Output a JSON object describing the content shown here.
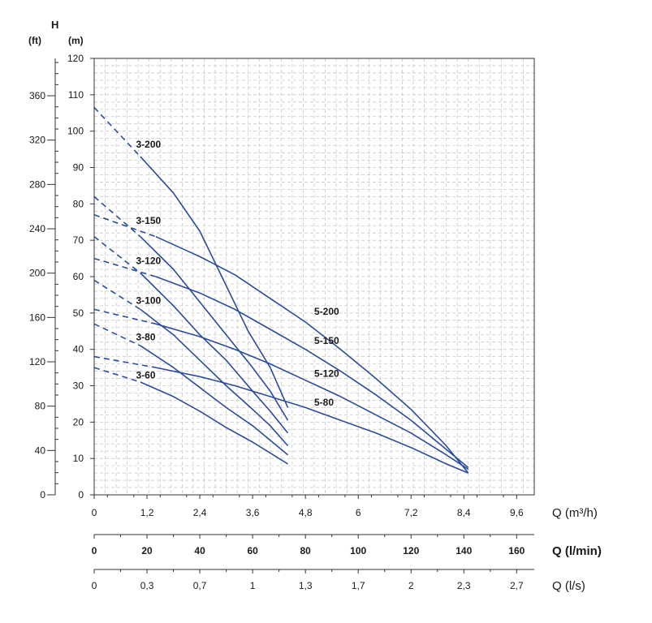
{
  "chart_data": {
    "type": "line",
    "axes": {
      "h_label": "H",
      "ft_unit": "(ft)",
      "m_unit": "(m)",
      "q_m3h_unit": "Q (m³/h)",
      "q_lmin_unit": "Q (l/min)",
      "q_ls_unit": "Q (l/s)",
      "ylim": [
        0,
        120
      ],
      "xlim": [
        0,
        10
      ],
      "m_ticks": [
        "0",
        "10",
        "20",
        "30",
        "40",
        "50",
        "60",
        "70",
        "80",
        "90",
        "100",
        "110",
        "120"
      ],
      "ft_ticks": [
        "0",
        "40",
        "80",
        "120",
        "160",
        "200",
        "240",
        "280",
        "320",
        "360"
      ],
      "q_m3h_ticks": [
        "0",
        "1,2",
        "2,4",
        "3,6",
        "4,8",
        "6",
        "7,2",
        "8,4",
        "9,6"
      ],
      "q_lmin_ticks": [
        "0",
        "20",
        "40",
        "60",
        "80",
        "100",
        "120",
        "140",
        "160"
      ],
      "q_ls_ticks": [
        "0",
        "0,3",
        "0,7",
        "1",
        "1,3",
        "1,7",
        "2",
        "2,3",
        "2,7"
      ],
      "grid": true
    },
    "series": [
      {
        "name": "3-200",
        "dashed": [
          [
            0,
            106.5
          ],
          [
            1.05,
            93
          ]
        ],
        "solid": [
          [
            1.05,
            93
          ],
          [
            1.8,
            83
          ],
          [
            2.4,
            72.5
          ],
          [
            2.9,
            60
          ],
          [
            3.5,
            45
          ],
          [
            4,
            35
          ],
          [
            4.4,
            24
          ]
        ]
      },
      {
        "name": "3-150",
        "dashed": [
          [
            0,
            82
          ],
          [
            1.05,
            71
          ]
        ],
        "solid": [
          [
            1.05,
            71
          ],
          [
            1.8,
            62
          ],
          [
            2.4,
            53
          ],
          [
            3,
            44
          ],
          [
            3.6,
            35
          ],
          [
            4,
            28.5
          ],
          [
            4.4,
            20.5
          ]
        ]
      },
      {
        "name": "3-120",
        "dashed": [
          [
            0,
            71
          ],
          [
            1.05,
            61
          ]
        ],
        "solid": [
          [
            1.05,
            61
          ],
          [
            1.8,
            52
          ],
          [
            2.4,
            44
          ],
          [
            3,
            37
          ],
          [
            3.6,
            28.5
          ],
          [
            4,
            23
          ],
          [
            4.4,
            17
          ]
        ]
      },
      {
        "name": "3-100",
        "dashed": [
          [
            0,
            59
          ],
          [
            1.05,
            51
          ]
        ],
        "solid": [
          [
            1.05,
            51
          ],
          [
            1.8,
            44
          ],
          [
            2.4,
            37
          ],
          [
            3,
            30
          ],
          [
            3.6,
            23.5
          ],
          [
            4,
            19
          ],
          [
            4.4,
            13.5
          ]
        ]
      },
      {
        "name": "3-80",
        "dashed": [
          [
            0,
            47
          ],
          [
            1.05,
            41
          ]
        ],
        "solid": [
          [
            1.05,
            41
          ],
          [
            1.8,
            35
          ],
          [
            2.4,
            29.5
          ],
          [
            3,
            24
          ],
          [
            3.6,
            19
          ],
          [
            4,
            15
          ],
          [
            4.4,
            11
          ]
        ]
      },
      {
        "name": "3-60",
        "dashed": [
          [
            0,
            35
          ],
          [
            1.05,
            31
          ]
        ],
        "solid": [
          [
            1.05,
            31
          ],
          [
            1.8,
            27
          ],
          [
            2.4,
            23
          ],
          [
            3,
            18.5
          ],
          [
            3.6,
            14.5
          ],
          [
            4,
            11.5
          ],
          [
            4.4,
            8.5
          ]
        ]
      },
      {
        "name": "5-200",
        "dashed": [
          [
            0,
            77
          ],
          [
            1.4,
            71
          ]
        ],
        "solid": [
          [
            1.4,
            71
          ],
          [
            2.4,
            65.5
          ],
          [
            3.2,
            60.5
          ],
          [
            4,
            54
          ],
          [
            4.8,
            47.5
          ],
          [
            5.6,
            40
          ],
          [
            6.4,
            32
          ],
          [
            7.2,
            23.5
          ],
          [
            8,
            13.5
          ],
          [
            8.5,
            6
          ]
        ]
      },
      {
        "name": "5-150",
        "dashed": [
          [
            0,
            65
          ],
          [
            1.4,
            60
          ]
        ],
        "solid": [
          [
            1.4,
            60
          ],
          [
            2.4,
            55.5
          ],
          [
            3.2,
            51
          ],
          [
            4,
            45.5
          ],
          [
            4.8,
            40
          ],
          [
            5.6,
            34
          ],
          [
            6.4,
            27.5
          ],
          [
            7.2,
            20.5
          ],
          [
            8,
            12.5
          ],
          [
            8.5,
            7.5
          ]
        ]
      },
      {
        "name": "5-120",
        "dashed": [
          [
            0,
            51
          ],
          [
            1.4,
            47
          ]
        ],
        "solid": [
          [
            1.4,
            47
          ],
          [
            2.4,
            43.5
          ],
          [
            3.2,
            40
          ],
          [
            4,
            36
          ],
          [
            4.8,
            31.5
          ],
          [
            5.6,
            27
          ],
          [
            6.4,
            22
          ],
          [
            7.2,
            17
          ],
          [
            8,
            11
          ],
          [
            8.5,
            7
          ]
        ]
      },
      {
        "name": "5-80",
        "dashed": [
          [
            0,
            38
          ],
          [
            1.4,
            35
          ]
        ],
        "solid": [
          [
            1.4,
            35
          ],
          [
            2.4,
            32.5
          ],
          [
            3.2,
            30
          ],
          [
            4,
            27
          ],
          [
            4.8,
            24
          ],
          [
            5.6,
            20.5
          ],
          [
            6.4,
            17
          ],
          [
            7.2,
            13
          ],
          [
            8,
            8.5
          ],
          [
            8.5,
            6
          ]
        ]
      }
    ],
    "curve_labels": [
      {
        "text": "3-200",
        "x": 0.95,
        "y": 95.5
      },
      {
        "text": "3-150",
        "x": 0.95,
        "y": 74.5
      },
      {
        "text": "3-120",
        "x": 0.95,
        "y": 63.5
      },
      {
        "text": "3-100",
        "x": 0.95,
        "y": 52.5
      },
      {
        "text": "3-80",
        "x": 0.95,
        "y": 42.5
      },
      {
        "text": "3-60",
        "x": 0.95,
        "y": 32
      },
      {
        "text": "5-200",
        "x": 5,
        "y": 49.5
      },
      {
        "text": "5-150",
        "x": 5,
        "y": 41.5
      },
      {
        "text": "5-120",
        "x": 5,
        "y": 32.5
      },
      {
        "text": "5-80",
        "x": 5,
        "y": 24.5
      }
    ],
    "line_color": "#2b4c9c",
    "grid_color": "#c8c8c8"
  }
}
